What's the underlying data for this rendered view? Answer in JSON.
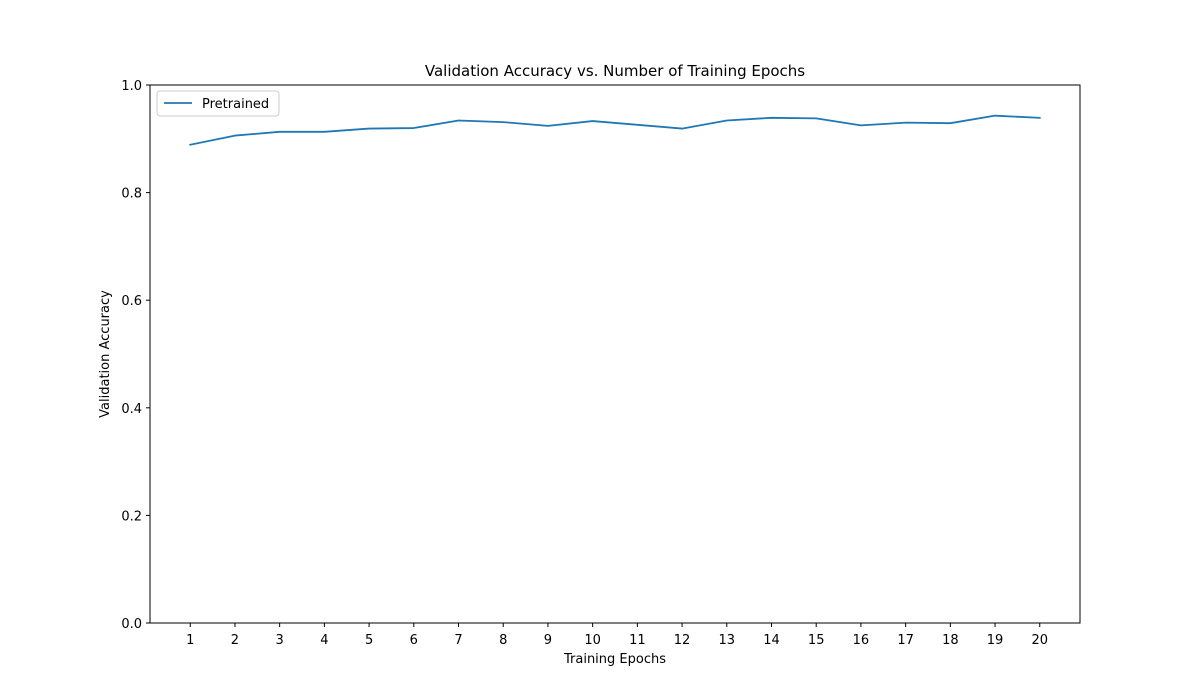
{
  "chart_data": {
    "type": "line",
    "title": "Validation Accuracy vs. Number of Training Epochs",
    "xlabel": "Training Epochs",
    "ylabel": "Validation Accuracy",
    "x": [
      1,
      2,
      3,
      4,
      5,
      6,
      7,
      8,
      9,
      10,
      11,
      12,
      13,
      14,
      15,
      16,
      17,
      18,
      19,
      20
    ],
    "ylim": [
      0,
      1.0
    ],
    "xlim": [
      0.1,
      20.9
    ],
    "yticks": [
      0.0,
      0.2,
      0.4,
      0.6,
      0.8,
      1.0
    ],
    "ytick_labels": [
      "0.0",
      "0.2",
      "0.4",
      "0.6",
      "0.8",
      "1.0"
    ],
    "xtick_labels": [
      "1",
      "2",
      "3",
      "4",
      "5",
      "6",
      "7",
      "8",
      "9",
      "10",
      "11",
      "12",
      "13",
      "14",
      "15",
      "16",
      "17",
      "18",
      "19",
      "20"
    ],
    "series": [
      {
        "name": "Pretrained",
        "color": "#1f77b4",
        "values": [
          0.889,
          0.906,
          0.913,
          0.913,
          0.919,
          0.92,
          0.934,
          0.931,
          0.924,
          0.933,
          0.926,
          0.919,
          0.934,
          0.939,
          0.938,
          0.925,
          0.93,
          0.929,
          0.943,
          0.939
        ]
      }
    ],
    "grid": false,
    "legend_position": "upper left"
  }
}
